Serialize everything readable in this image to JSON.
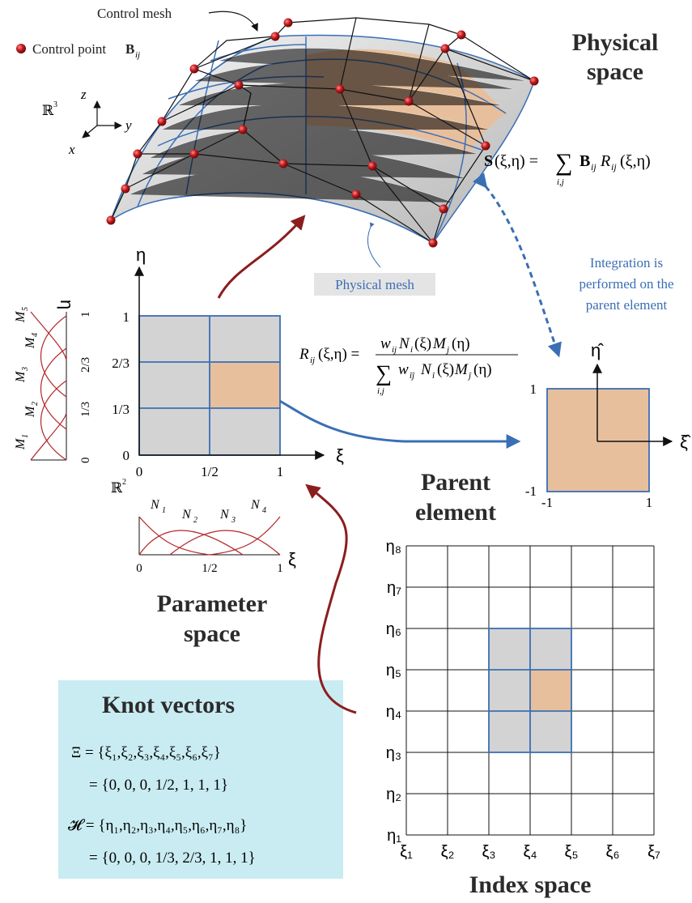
{
  "labels": {
    "control_mesh": "Control mesh",
    "control_point": "Control point",
    "control_point_symbol": "B",
    "control_point_sub": "ij",
    "physical_space_1": "Physical",
    "physical_space_2": "space",
    "physical_mesh": "Physical mesh",
    "integration_1": "Integration is",
    "integration_2": "performed on the",
    "integration_3": "parent element",
    "parent_1": "Parent",
    "parent_2": "element",
    "parameter_1": "Parameter",
    "parameter_2": "space",
    "index_space": "Index space",
    "knot_vectors": "Knot vectors",
    "r3": "ℝ",
    "r3_sup": "3",
    "r2": "ℝ",
    "r2_sup": "2",
    "axis_x": "x",
    "axis_y": "y",
    "axis_z": "z"
  },
  "equations": {
    "surface": "S(ξ,η) = Σ B R (ξ,η)",
    "surface_sum_sub": "i,j",
    "basis_lhs": "R (ξ,η) =",
    "basis_num": "w N (ξ)M (η)",
    "basis_den": "Σ w N (ξ)M (η)",
    "basis_sum_sub": "i,j"
  },
  "knots": {
    "xi_def": "Ξ = {ξ₁,ξ₂,ξ₃,ξ₄,ξ₅,ξ₆,ξ₇}",
    "xi_val": "= {0,  0,  0,  1/2,  1,  1,  1}",
    "eta_def": "𝓗 = {η₁,η₂,η₃,η₄,η₅,η₆,η₇,η₈}",
    "eta_val": "= {0,  0,  0,  1/3,  2/3,  1,  1,  1}"
  },
  "parameter_space": {
    "eta_label": "η",
    "xi_label": "ξ",
    "x_ticks": [
      "0",
      "1/2",
      "1"
    ],
    "y_ticks": [
      "0",
      "1/3",
      "2/3",
      "1"
    ],
    "n_funcs": [
      "N",
      "N",
      "N",
      "N"
    ],
    "n_subs": [
      "1",
      "2",
      "3",
      "4"
    ],
    "m_funcs": [
      "M",
      "M",
      "M",
      "M",
      "M"
    ],
    "m_subs": [
      "1",
      "2",
      "3",
      "4",
      "5"
    ],
    "n_ticks": [
      "0",
      "1/2",
      "1"
    ],
    "m_ticks": [
      "0",
      "1/3",
      "2/3",
      "1"
    ]
  },
  "parent_element": {
    "xi_hat": "ξ̂",
    "eta_hat": "η̂",
    "ticks_x": [
      "-1",
      "1"
    ],
    "ticks_y": [
      "-1",
      "1"
    ]
  },
  "index_space": {
    "xi_labels": [
      "ξ₁",
      "ξ₂",
      "ξ₃",
      "ξ₄",
      "ξ₅",
      "ξ₆",
      "ξ₇"
    ],
    "eta_labels": [
      "η₁",
      "η₂",
      "η₃",
      "η₄",
      "η₅",
      "η₆",
      "η₇",
      "η₈"
    ]
  },
  "colors": {
    "highlight": "#e8bf9c",
    "grey": "#d3d3d3",
    "blue": "#3a6fb5",
    "red": "#8c1d1d",
    "knot_bg": "#c9ecf2"
  }
}
